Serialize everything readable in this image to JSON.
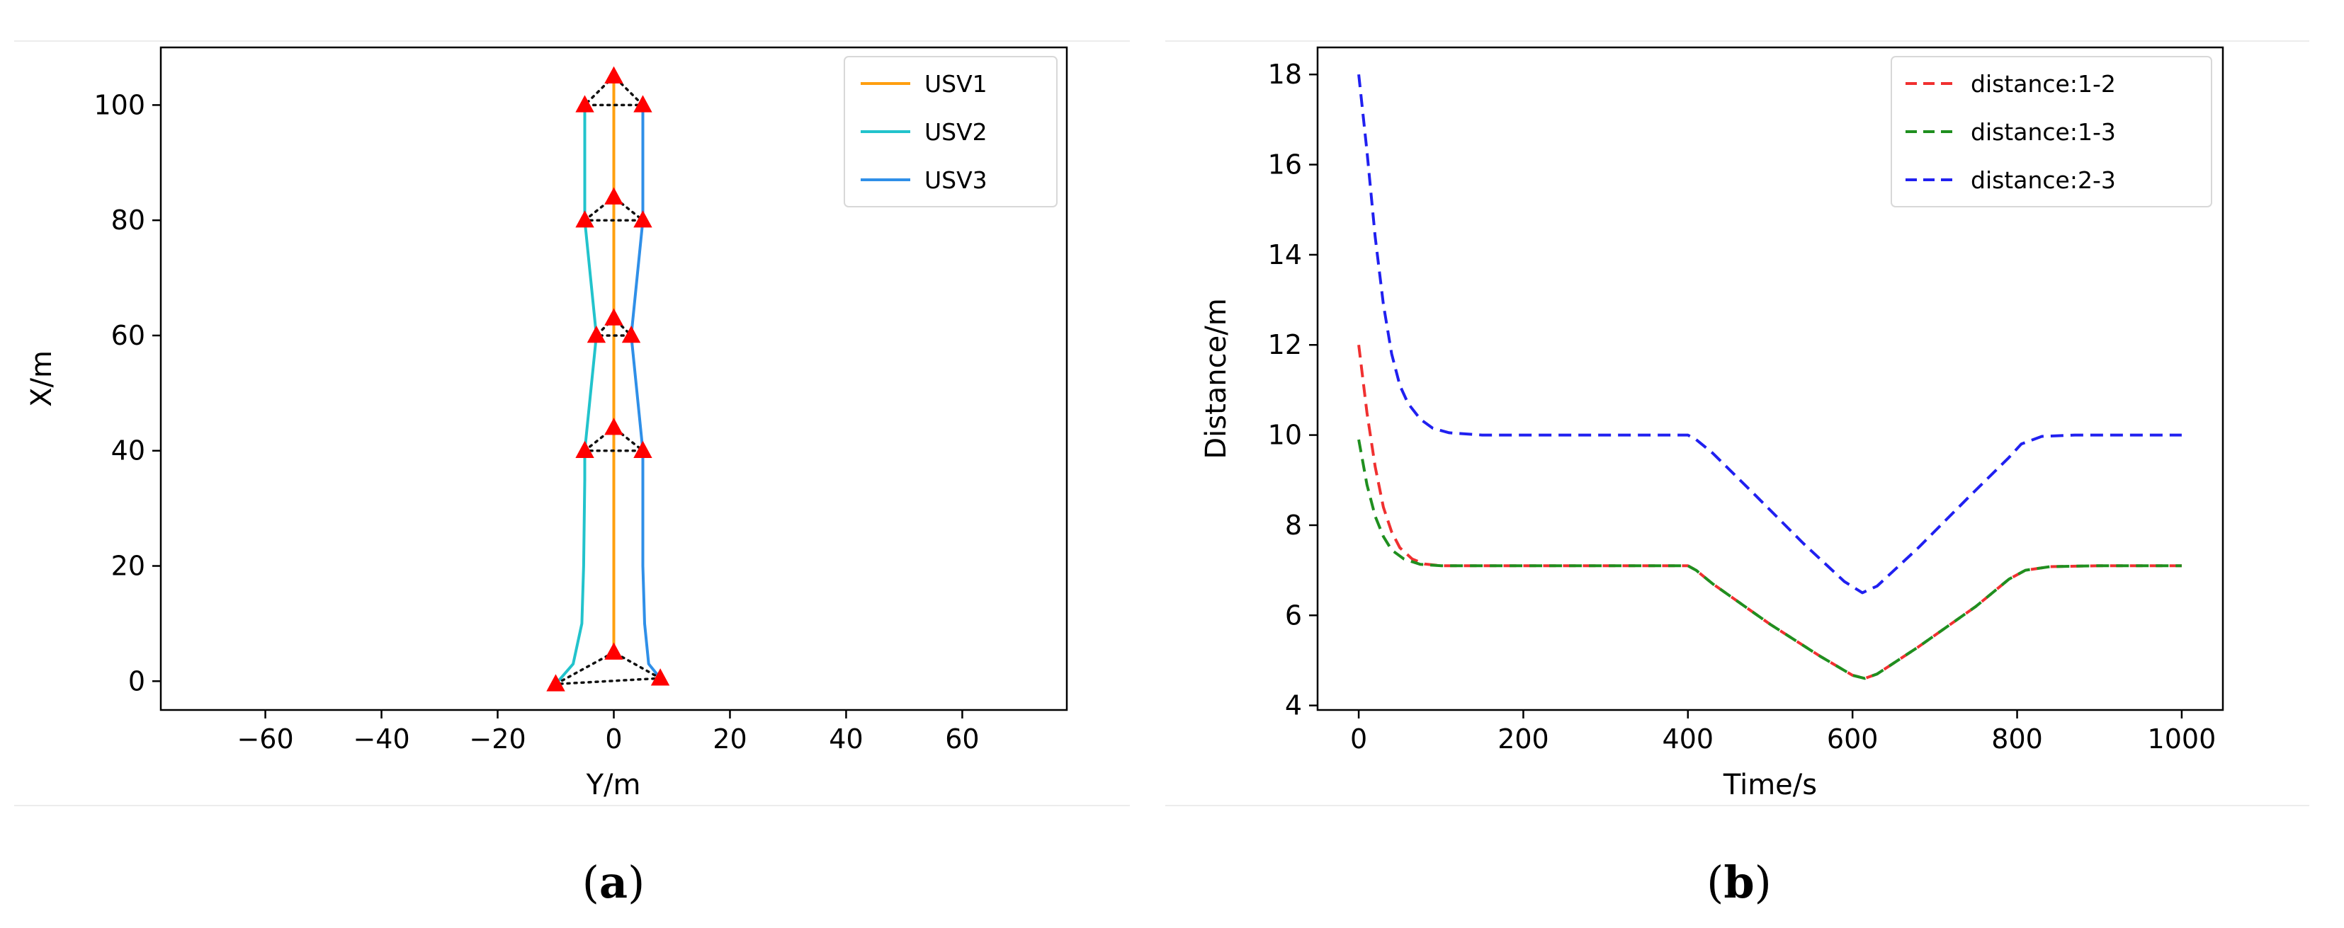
{
  "chart_data": [
    {
      "type": "line",
      "xlabel": "Y/m",
      "ylabel": "X/m",
      "xlim": [
        -78,
        78
      ],
      "ylim": [
        -5,
        110
      ],
      "xticks": [
        -60,
        -40,
        -20,
        0,
        20,
        40,
        60
      ],
      "yticks": [
        0,
        20,
        40,
        60,
        80,
        100
      ],
      "legend_position": "top-right",
      "caption": {
        "open": "(",
        "letter": "a",
        "close": ")"
      },
      "series": [
        {
          "name": "USV1",
          "color": "#ff9f0f",
          "points": [
            [
              0,
              5
            ],
            [
              0,
              25
            ],
            [
              0,
              44
            ],
            [
              0,
              63
            ],
            [
              0,
              84
            ],
            [
              0,
              105
            ]
          ]
        },
        {
          "name": "USV2",
          "color": "#22c3cc",
          "points": [
            [
              -10,
              -0.5
            ],
            [
              -7,
              3
            ],
            [
              -5.5,
              10
            ],
            [
              -5.2,
              20
            ],
            [
              -5,
              35
            ],
            [
              -5,
              40
            ],
            [
              -3,
              60
            ],
            [
              -5,
              80
            ],
            [
              -5,
              100
            ]
          ]
        },
        {
          "name": "USV3",
          "color": "#2f8fe8",
          "points": [
            [
              8,
              0.5
            ],
            [
              6,
              3
            ],
            [
              5.3,
              10
            ],
            [
              5,
              20
            ],
            [
              5,
              35
            ],
            [
              5,
              40
            ],
            [
              3,
              60
            ],
            [
              5,
              80
            ],
            [
              5,
              100
            ]
          ]
        }
      ],
      "markers": [
        [
          0,
          5
        ],
        [
          -10,
          -0.5
        ],
        [
          8,
          0.5
        ],
        [
          0,
          44
        ],
        [
          -5,
          40
        ],
        [
          5,
          40
        ],
        [
          0,
          63
        ],
        [
          -3,
          60
        ],
        [
          3,
          60
        ],
        [
          0,
          84
        ],
        [
          -5,
          80
        ],
        [
          5,
          80
        ],
        [
          0,
          105
        ],
        [
          -5,
          100
        ],
        [
          5,
          100
        ]
      ],
      "formations": [
        [
          [
            0,
            5
          ],
          [
            -10,
            -0.5
          ],
          [
            8,
            0.5
          ]
        ],
        [
          [
            0,
            44
          ],
          [
            -5,
            40
          ],
          [
            5,
            40
          ]
        ],
        [
          [
            0,
            63
          ],
          [
            -3,
            60
          ],
          [
            3,
            60
          ]
        ],
        [
          [
            0,
            84
          ],
          [
            -5,
            80
          ],
          [
            5,
            80
          ]
        ],
        [
          [
            0,
            105
          ],
          [
            -5,
            100
          ],
          [
            5,
            100
          ]
        ]
      ]
    },
    {
      "type": "line",
      "xlabel": "Time/s",
      "ylabel": "Distance/m",
      "xlim": [
        -50,
        1050
      ],
      "ylim": [
        3.9,
        18.6
      ],
      "xticks": [
        0,
        200,
        400,
        600,
        800,
        1000
      ],
      "yticks": [
        4,
        6,
        8,
        10,
        12,
        14,
        16,
        18
      ],
      "legend_position": "top-right",
      "caption": {
        "open": "(",
        "letter": "b",
        "close": ")"
      },
      "series": [
        {
          "name": "distance:1-2",
          "color": "#f03030",
          "points": [
            [
              0,
              12.0
            ],
            [
              10,
              10.5
            ],
            [
              20,
              9.3
            ],
            [
              30,
              8.4
            ],
            [
              40,
              7.85
            ],
            [
              50,
              7.5
            ],
            [
              65,
              7.25
            ],
            [
              80,
              7.14
            ],
            [
              100,
              7.1
            ],
            [
              400,
              7.1
            ],
            [
              410,
              7.0
            ],
            [
              430,
              6.7
            ],
            [
              500,
              5.8
            ],
            [
              560,
              5.1
            ],
            [
              600,
              4.67
            ],
            [
              615,
              4.6
            ],
            [
              630,
              4.7
            ],
            [
              680,
              5.3
            ],
            [
              750,
              6.2
            ],
            [
              790,
              6.8
            ],
            [
              810,
              7.0
            ],
            [
              840,
              7.08
            ],
            [
              900,
              7.1
            ],
            [
              1000,
              7.1
            ]
          ]
        },
        {
          "name": "distance:1-3",
          "color": "#1f8f1f",
          "points": [
            [
              0,
              9.9
            ],
            [
              10,
              8.9
            ],
            [
              20,
              8.2
            ],
            [
              30,
              7.75
            ],
            [
              40,
              7.45
            ],
            [
              55,
              7.25
            ],
            [
              75,
              7.13
            ],
            [
              100,
              7.1
            ],
            [
              400,
              7.1
            ],
            [
              410,
              7.0
            ],
            [
              430,
              6.7
            ],
            [
              500,
              5.8
            ],
            [
              560,
              5.1
            ],
            [
              600,
              4.67
            ],
            [
              615,
              4.6
            ],
            [
              630,
              4.7
            ],
            [
              680,
              5.3
            ],
            [
              750,
              6.2
            ],
            [
              790,
              6.8
            ],
            [
              810,
              7.0
            ],
            [
              840,
              7.08
            ],
            [
              900,
              7.1
            ],
            [
              1000,
              7.1
            ]
          ]
        },
        {
          "name": "distance:2-3",
          "color": "#2020f0",
          "points": [
            [
              0,
              18.0
            ],
            [
              10,
              16.3
            ],
            [
              20,
              14.4
            ],
            [
              30,
              12.9
            ],
            [
              40,
              11.8
            ],
            [
              50,
              11.1
            ],
            [
              60,
              10.7
            ],
            [
              75,
              10.35
            ],
            [
              90,
              10.15
            ],
            [
              110,
              10.05
            ],
            [
              150,
              10.0
            ],
            [
              400,
              10.0
            ],
            [
              410,
              9.9
            ],
            [
              430,
              9.6
            ],
            [
              480,
              8.7
            ],
            [
              540,
              7.6
            ],
            [
              590,
              6.75
            ],
            [
              612,
              6.5
            ],
            [
              630,
              6.65
            ],
            [
              680,
              7.5
            ],
            [
              740,
              8.6
            ],
            [
              790,
              9.5
            ],
            [
              805,
              9.8
            ],
            [
              830,
              9.97
            ],
            [
              870,
              10.0
            ],
            [
              1000,
              10.0
            ]
          ]
        }
      ]
    }
  ]
}
